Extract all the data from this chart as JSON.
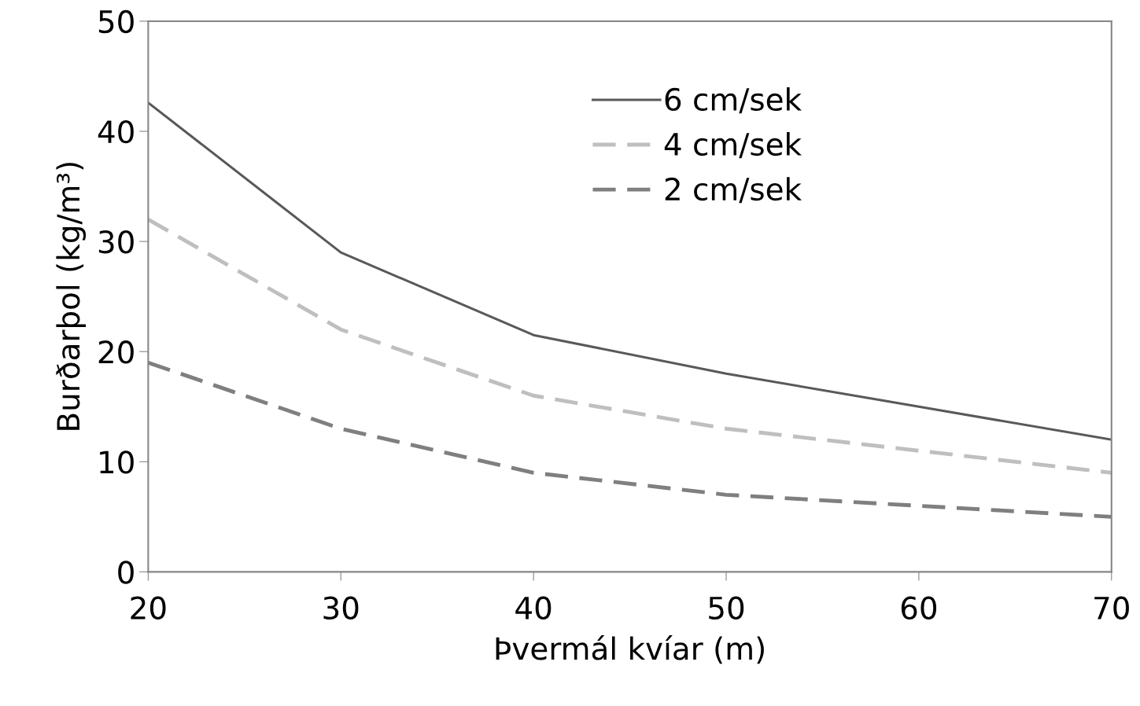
{
  "chart_data": {
    "type": "line",
    "xlabel": "Þvermál kvíar (m)",
    "ylabel": "Burðarþol (kg/m³)",
    "x": [
      20,
      30,
      40,
      50,
      60,
      70
    ],
    "series": [
      {
        "name": "6 cm/sek",
        "color": "#595959",
        "line_style": "solid",
        "values": [
          42.6,
          29.0,
          21.5,
          18.0,
          15.0,
          12.0
        ]
      },
      {
        "name": "4 cm/sek",
        "color": "#bfbfbf",
        "line_style": "dashed",
        "values": [
          32.0,
          22.0,
          16.0,
          13.0,
          11.0,
          9.0
        ]
      },
      {
        "name": "2 cm/sek",
        "color": "#7f7f7f",
        "line_style": "dashed",
        "values": [
          19.0,
          13.0,
          9.0,
          7.0,
          6.0,
          5.0
        ]
      }
    ],
    "xlim": [
      20,
      70
    ],
    "xticks": [
      20,
      30,
      40,
      50,
      60,
      70
    ],
    "ylim": [
      0,
      50
    ],
    "yticks": [
      0,
      10,
      20,
      30,
      40,
      50
    ],
    "grid": false,
    "legend": "top",
    "marker": "none"
  }
}
